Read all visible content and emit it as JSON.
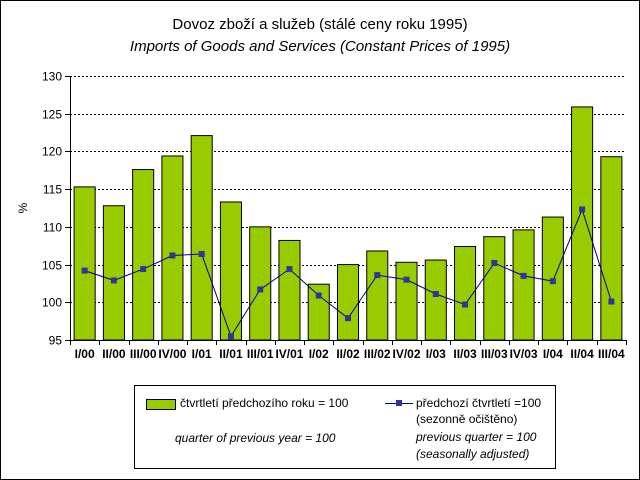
{
  "chart_data": {
    "type": "bar",
    "title": "Dovoz zboží a služeb (stálé ceny roku 1995)",
    "subtitle": "Imports of Goods and Services (Constant Prices of 1995)",
    "ylabel": "%",
    "xlabel": "",
    "ylim": [
      95,
      130
    ],
    "yticks": [
      95,
      100,
      105,
      110,
      115,
      120,
      125,
      130
    ],
    "grid": true,
    "legend_position": "bottom",
    "categories": [
      "I/00",
      "II/00",
      "III/00",
      "IV/00",
      "I/01",
      "II/01",
      "III/01",
      "IV/01",
      "I/02",
      "II/02",
      "III/02",
      "IV/02",
      "I/03",
      "II/03",
      "III/03",
      "IV/03",
      "I/04",
      "II/04",
      "III/04"
    ],
    "series": [
      {
        "name": "čtvrtletí předchozího roku = 100",
        "name_en": "quarter of previous year = 100",
        "type": "bar",
        "color": "#99cc00",
        "values": [
          115.3,
          112.8,
          117.6,
          119.4,
          122.1,
          113.3,
          110.0,
          108.2,
          102.4,
          105.0,
          106.8,
          105.3,
          105.6,
          107.4,
          108.7,
          109.6,
          111.3,
          125.9,
          119.3
        ]
      },
      {
        "name": "předchozí čtvrtletí =100",
        "name_line2": "(sezonně očištěno)",
        "name_en": "previous quarter = 100",
        "name_en_line2": "(seasonally adjusted)",
        "type": "line",
        "color": "#333399",
        "values": [
          104.2,
          102.9,
          104.4,
          106.2,
          106.4,
          95.5,
          101.7,
          104.4,
          100.9,
          97.9,
          103.6,
          103.0,
          101.1,
          99.7,
          105.2,
          103.5,
          102.8,
          112.3,
          100.1
        ]
      }
    ]
  }
}
